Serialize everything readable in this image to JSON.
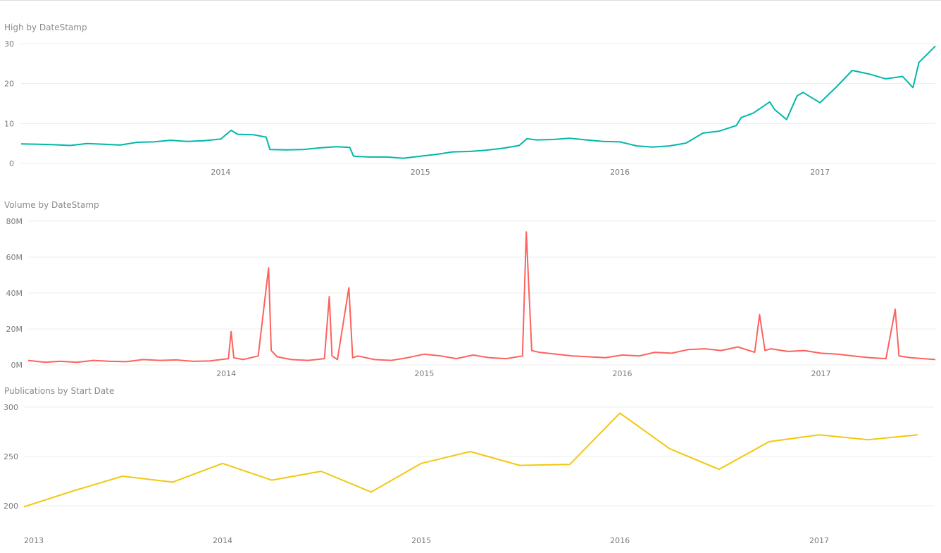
{
  "chart_data": [
    {
      "type": "line",
      "title": "High by DateStamp",
      "xlabel": "",
      "ylabel": "",
      "color": "#01B8AA",
      "grid": true,
      "x_ticks": [
        "2014",
        "2015",
        "2016",
        "2017"
      ],
      "y_ticks": [
        "0",
        "10",
        "20",
        "30"
      ],
      "ylim": [
        0,
        30
      ],
      "xlim": [
        "2013-01-01",
        "2017-07-31"
      ],
      "series": [
        {
          "x": [
            "2013-01-01",
            "2013-02-01",
            "2013-03-01",
            "2013-04-01",
            "2013-05-01",
            "2013-06-01",
            "2013-07-01",
            "2013-08-01",
            "2013-09-01",
            "2013-10-01",
            "2013-11-01",
            "2013-12-01",
            "2014-01-01",
            "2014-01-20",
            "2014-02-01",
            "2014-03-01",
            "2014-03-25",
            "2014-04-01",
            "2014-05-01",
            "2014-06-01",
            "2014-07-01",
            "2014-08-01",
            "2014-08-25",
            "2014-09-01",
            "2014-10-01",
            "2014-11-01",
            "2014-12-01",
            "2015-01-01",
            "2015-02-01",
            "2015-03-01",
            "2015-04-01",
            "2015-05-01",
            "2015-06-01",
            "2015-07-01",
            "2015-07-15",
            "2015-08-01",
            "2015-09-01",
            "2015-10-01",
            "2015-11-01",
            "2015-12-01",
            "2016-01-01",
            "2016-02-01",
            "2016-03-01",
            "2016-04-01",
            "2016-05-01",
            "2016-06-01",
            "2016-07-01",
            "2016-08-01",
            "2016-08-10",
            "2016-09-01",
            "2016-10-01",
            "2016-10-10",
            "2016-11-01",
            "2016-11-20",
            "2016-12-01",
            "2017-01-01",
            "2017-02-01",
            "2017-03-01",
            "2017-04-01",
            "2017-05-01",
            "2017-06-01",
            "2017-06-20",
            "2017-07-01",
            "2017-07-31"
          ],
          "y": [
            4.9,
            4.8,
            4.7,
            4.5,
            5.0,
            4.8,
            4.6,
            5.3,
            5.4,
            5.8,
            5.5,
            5.7,
            6.1,
            8.3,
            7.3,
            7.2,
            6.6,
            3.5,
            3.4,
            3.5,
            3.9,
            4.2,
            4.0,
            1.8,
            1.6,
            1.6,
            1.3,
            1.8,
            2.3,
            2.9,
            3.0,
            3.3,
            3.8,
            4.5,
            6.2,
            5.9,
            6.0,
            6.3,
            5.9,
            5.5,
            5.4,
            4.4,
            4.1,
            4.4,
            5.1,
            7.6,
            8.1,
            9.5,
            11.5,
            12.6,
            15.4,
            13.5,
            11.0,
            16.9,
            17.8,
            15.2,
            19.3,
            23.3,
            22.4,
            21.2,
            21.8,
            19.0,
            25.3,
            29.4
          ]
        }
      ]
    },
    {
      "type": "line",
      "title": "Volume by DateStamp",
      "xlabel": "",
      "ylabel": "",
      "color": "#FD625E",
      "grid": true,
      "x_ticks": [
        "2014",
        "2015",
        "2016",
        "2017"
      ],
      "y_ticks": [
        "0M",
        "20M",
        "40M",
        "60M",
        "80M"
      ],
      "ylim": [
        0,
        80000000
      ],
      "xlim": [
        "2013-01-01",
        "2017-07-31"
      ],
      "baseline_note_hidden": true,
      "series": [
        {
          "x": [
            "2013-01-01",
            "2013-02-01",
            "2013-03-01",
            "2013-04-01",
            "2013-05-01",
            "2013-06-01",
            "2013-07-01",
            "2013-08-01",
            "2013-09-01",
            "2013-10-01",
            "2013-11-01",
            "2013-12-01",
            "2014-01-05",
            "2014-01-10",
            "2014-01-15",
            "2014-02-01",
            "2014-03-01",
            "2014-03-20",
            "2014-03-25",
            "2014-04-05",
            "2014-05-01",
            "2014-06-01",
            "2014-07-01",
            "2014-07-10",
            "2014-07-15",
            "2014-07-25",
            "2014-08-15",
            "2014-08-22",
            "2014-09-01",
            "2014-10-01",
            "2014-11-01",
            "2014-12-01",
            "2015-01-01",
            "2015-02-01",
            "2015-03-01",
            "2015-04-01",
            "2015-05-01",
            "2015-06-01",
            "2015-07-01",
            "2015-07-08",
            "2015-07-18",
            "2015-08-01",
            "2015-09-01",
            "2015-10-01",
            "2015-11-01",
            "2015-12-01",
            "2016-01-01",
            "2016-02-01",
            "2016-03-01",
            "2016-04-01",
            "2016-05-01",
            "2016-06-01",
            "2016-07-01",
            "2016-08-01",
            "2016-09-01",
            "2016-09-10",
            "2016-09-20",
            "2016-10-01",
            "2016-11-01",
            "2016-12-01",
            "2017-01-01",
            "2017-02-01",
            "2017-03-01",
            "2017-04-01",
            "2017-05-01",
            "2017-05-18",
            "2017-05-25",
            "2017-06-15",
            "2017-07-31"
          ],
          "y": [
            2500000,
            1500000,
            2000000,
            1500000,
            2500000,
            2000000,
            1800000,
            3000000,
            2500000,
            2800000,
            2000000,
            2200000,
            3500000,
            18500000,
            4000000,
            3000000,
            5000000,
            54000000,
            8000000,
            4500000,
            3000000,
            2500000,
            3500000,
            38000000,
            5000000,
            3000000,
            43000000,
            4000000,
            5000000,
            3000000,
            2500000,
            4000000,
            6000000,
            5000000,
            3500000,
            5500000,
            4000000,
            3500000,
            5000000,
            74000000,
            8000000,
            7000000,
            6000000,
            5000000,
            4500000,
            4000000,
            5500000,
            5000000,
            7000000,
            6500000,
            8500000,
            9000000,
            8000000,
            10000000,
            7000000,
            28000000,
            8000000,
            9000000,
            7500000,
            8000000,
            6500000,
            6000000,
            5000000,
            4000000,
            3500000,
            31000000,
            5000000,
            4000000,
            3000000
          ]
        }
      ]
    },
    {
      "type": "line",
      "title": "Publications by Start Date",
      "xlabel": "",
      "ylabel": "",
      "color": "#F2C80F",
      "grid": true,
      "x_ticks": [
        "2013",
        "2014",
        "2015",
        "2016",
        "2017"
      ],
      "y_ticks": [
        "200",
        "250",
        "300"
      ],
      "ylim": [
        195,
        300
      ],
      "xlim": [
        "2013-01-01",
        "2017-07-31"
      ],
      "series": [
        {
          "x": [
            "2013-01-01",
            "2013-04-01",
            "2013-07-01",
            "2013-10-01",
            "2014-01-01",
            "2014-04-01",
            "2014-07-01",
            "2014-10-01",
            "2015-01-01",
            "2015-04-01",
            "2015-07-01",
            "2015-10-01",
            "2016-01-01",
            "2016-04-01",
            "2016-07-01",
            "2016-10-01",
            "2017-01-01",
            "2017-04-01",
            "2017-07-01"
          ],
          "y": [
            199,
            215,
            230,
            224,
            243,
            226,
            235,
            214,
            243,
            255,
            241,
            242,
            294,
            258,
            237,
            265,
            272,
            267,
            272
          ]
        }
      ]
    }
  ]
}
